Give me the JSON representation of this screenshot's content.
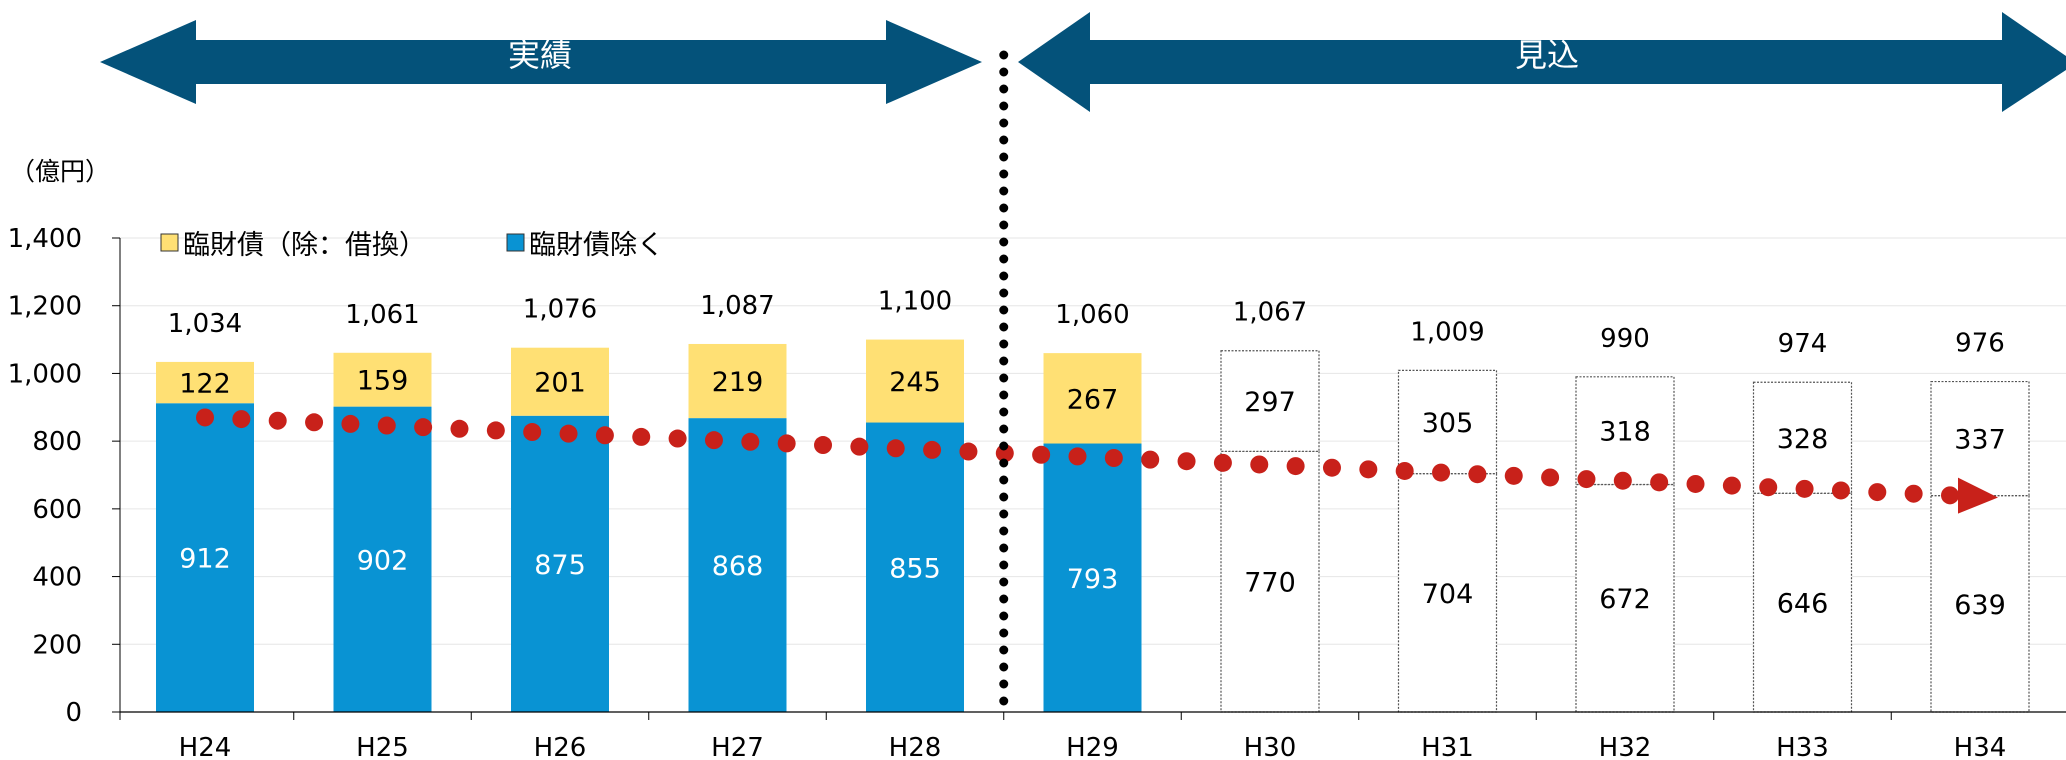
{
  "phases": [
    {
      "label": "実績",
      "color": "#04527a"
    },
    {
      "label": "見込",
      "color": "#04527a"
    }
  ],
  "unit_label": "（億円）",
  "chart_data": {
    "type": "bar",
    "stacked": true,
    "categories": [
      "H24",
      "H25",
      "H26",
      "H27",
      "H28",
      "H29",
      "H30",
      "H31",
      "H32",
      "H33",
      "H34"
    ],
    "series": [
      {
        "name": "臨財債除く",
        "color": "#0993d3",
        "values": [
          912,
          902,
          875,
          868,
          855,
          793,
          770,
          704,
          672,
          646,
          639
        ]
      },
      {
        "name": "臨財債（除：借換）",
        "color": "#ffe074",
        "values": [
          122,
          159,
          201,
          219,
          245,
          267,
          297,
          305,
          318,
          328,
          337
        ]
      }
    ],
    "totals": [
      1034,
      1061,
      1076,
      1087,
      1100,
      1060,
      1067,
      1009,
      990,
      974,
      976
    ],
    "total_labels": [
      "1,034",
      "1,061",
      "1,076",
      "1,087",
      "1,100",
      "1,060",
      "1,067",
      "1,009",
      "990",
      "974",
      "976"
    ],
    "projected_from_index": 6,
    "ylim": [
      0,
      1400
    ],
    "yticks": [
      0,
      200,
      400,
      600,
      800,
      1000,
      1200,
      1400
    ],
    "ytick_labels": [
      "0",
      "200",
      "400",
      "600",
      "800",
      "1,000",
      "1,200",
      "1,400"
    ],
    "trend_line": {
      "style": "dotted-arrow",
      "color": "#c8211a",
      "start_value": 870,
      "end_value": 640
    },
    "legend_placement": "top-left",
    "grid": true
  }
}
